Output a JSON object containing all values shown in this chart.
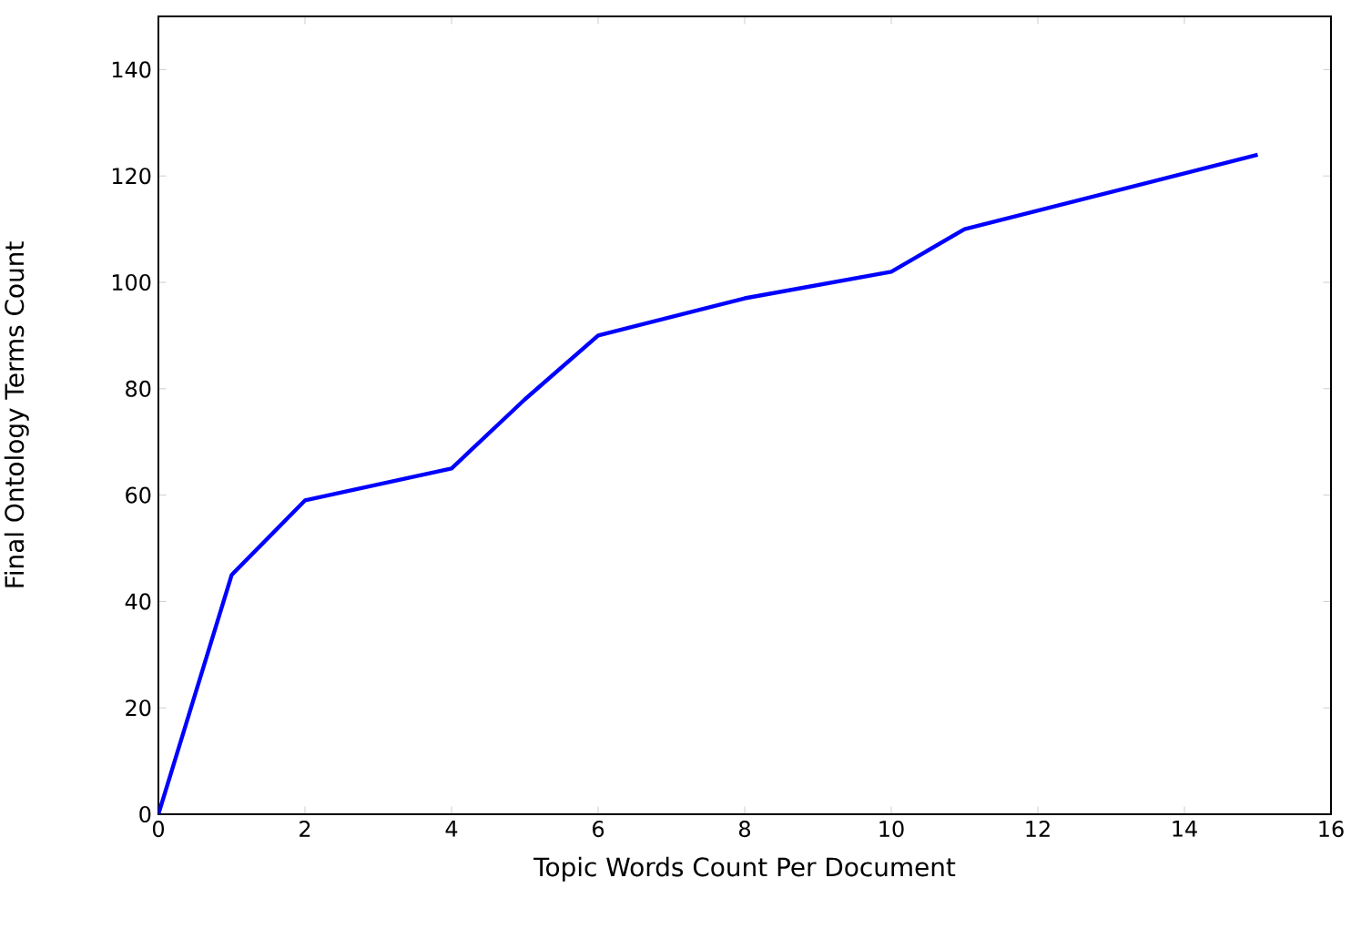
{
  "chart_data": {
    "type": "line",
    "xlabel": "Topic Words Count Per Document",
    "ylabel": "Final Ontology Terms Count",
    "x": [
      0,
      1,
      2,
      4,
      5,
      6,
      8,
      10,
      11,
      15
    ],
    "series": [
      {
        "color": "#0000ff",
        "values": [
          0,
          45,
          59,
          65,
          78,
          90,
          97,
          102,
          110,
          124
        ]
      }
    ],
    "xlim": [
      0,
      16
    ],
    "ylim": [
      0,
      150
    ],
    "xticks": [
      0,
      2,
      4,
      6,
      8,
      10,
      12,
      14,
      16
    ],
    "yticks": [
      0,
      20,
      40,
      60,
      80,
      100,
      120,
      140
    ],
    "grid": false,
    "marker": "none",
    "line_style": "solid"
  }
}
